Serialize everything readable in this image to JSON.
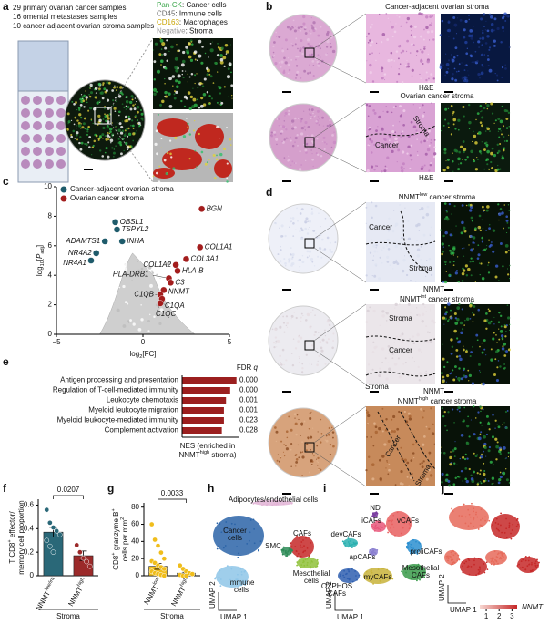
{
  "panel_labels": [
    "a",
    "b",
    "c",
    "d",
    "e",
    "f",
    "g",
    "h",
    "i",
    "j"
  ],
  "panel_a": {
    "samples": [
      "29 primary ovarian cancer samples",
      "16 omental metastases samples",
      "10 cancer-adjacent ovarian stroma samples"
    ],
    "legend": [
      {
        "marker": "Pan-CK",
        "label": ": Cancer cells",
        "color": "#3aa64a"
      },
      {
        "marker": "CD45",
        "label": ": Immune cells",
        "color": "#666666"
      },
      {
        "marker": "CD163",
        "label": ": Macrophages",
        "color": "#c9a400"
      },
      {
        "marker": "Negative",
        "label": ": Stroma",
        "color": "#9a9a9a"
      }
    ]
  },
  "panel_b": {
    "top": {
      "title": "Cancer-adjacent ovarian stroma",
      "stain": "H&E"
    },
    "bottom": {
      "title": "Ovarian cancer stroma",
      "regions": [
        "Cancer",
        "Stroma"
      ],
      "stain": "H&E"
    }
  },
  "panel_d": {
    "rows": [
      {
        "title": [
          {
            "t": "NNMT"
          },
          {
            "t": "low",
            "pos": "sup"
          },
          {
            "t": " cancer stroma"
          }
        ],
        "regions": [
          "Cancer",
          "Stroma"
        ],
        "stain": "NNMT"
      },
      {
        "title": [
          {
            "t": "NNMT"
          },
          {
            "t": "int",
            "pos": "sup"
          },
          {
            "t": " cancer stroma"
          }
        ],
        "regions": [
          "Stroma",
          "Cancer",
          "Stroma"
        ],
        "stain": "NNMT"
      },
      {
        "title": [
          {
            "t": "NNMT"
          },
          {
            "t": "high",
            "pos": "sup"
          },
          {
            "t": " cancer stroma"
          }
        ],
        "regions": [
          "Cancer",
          "Stroma"
        ]
      }
    ]
  },
  "chart_data": [
    {
      "type": "scatter",
      "xlabel": [
        {
          "t": "log"
        },
        {
          "t": "2",
          "pos": "sub"
        },
        {
          "t": "[FC]"
        }
      ],
      "ylabel": [
        {
          "t": "log"
        },
        {
          "t": "10",
          "pos": "sub"
        },
        {
          "t": "["
        },
        {
          "t": "P",
          "style": "italic"
        },
        {
          "t": "adj",
          "pos": "sub"
        },
        {
          "t": "]"
        }
      ],
      "xlim": [
        -5,
        5
      ],
      "xticks": [
        {
          "value": -5,
          "label": "−5"
        },
        0,
        5
      ],
      "ylim": [
        0,
        10
      ],
      "yticks": [
        0,
        2,
        4,
        6,
        8,
        10
      ],
      "series": [
        {
          "name": "Cancer-adjacent ovarian stroma",
          "color": "#1e5b6b",
          "labels": [
            "OBSL1",
            "TSPYL2",
            "ADAMTS1",
            "INHA",
            "NR4A2",
            "NR4A1"
          ],
          "x": [
            -1.6,
            -1.5,
            -2.2,
            -1.2,
            -2.7,
            -3.0
          ],
          "y": [
            7.6,
            7.1,
            6.3,
            6.3,
            5.5,
            5.0
          ]
        },
        {
          "name": "Ovarian cancer stroma",
          "color": "#a31d1d",
          "labels": [
            "BGN",
            "COL1A1",
            "COL3A1",
            "COL1A2",
            "HLA-DRB1",
            "HLA-B",
            "C3",
            "NNMT",
            "C1QB",
            "C1QA",
            "C1QC"
          ],
          "x": [
            3.4,
            3.3,
            2.5,
            1.9,
            1.5,
            2.0,
            1.6,
            1.2,
            1.0,
            1.1,
            1.0
          ],
          "y": [
            8.5,
            5.9,
            5.1,
            4.7,
            3.8,
            4.3,
            3.5,
            3.0,
            2.7,
            2.4,
            2.1
          ]
        }
      ]
    },
    {
      "type": "bar",
      "orientation": "horizontal",
      "header": [
        {
          "t": "FDR "
        },
        {
          "t": "q",
          "style": "italic"
        }
      ],
      "categories": [
        "Antigen processing and presentation",
        "Regulation of T-cell-mediated immunity",
        "Leukocyte chemotaxis",
        "Myeloid leukocyte migration",
        "Myeloid leukocyte-mediated immunity",
        "Complement activation"
      ],
      "values": [
        2.6,
        2.3,
        2.1,
        2.0,
        2.0,
        1.9
      ],
      "fdr": [
        "0.000",
        "0.000",
        "0.001",
        "0.001",
        "0.023",
        "0.028"
      ],
      "color": "#9b1f1f",
      "xlim": [
        0,
        2.7
      ],
      "xlabel": [
        [
          {
            "t": "NES (enriched in"
          }
        ],
        [
          {
            "t": "NNMT"
          },
          {
            "t": "high",
            "pos": "sup"
          },
          {
            "t": " stroma)"
          }
        ]
      ]
    },
    {
      "type": "bar",
      "ylabel": [
        [
          {
            "t": "T CD8"
          },
          {
            "t": "+",
            "pos": "sup"
          },
          {
            "t": " effector/"
          }
        ],
        [
          {
            "t": "memory cell proportion"
          }
        ]
      ],
      "categories": [
        [
          {
            "t": "NNMT"
          },
          {
            "t": "low/int",
            "pos": "sup"
          }
        ],
        [
          {
            "t": "NNMT"
          },
          {
            "t": "high",
            "pos": "sup"
          }
        ]
      ],
      "values": [
        0.37,
        0.17
      ],
      "errors": [
        0.04,
        0.04
      ],
      "points": [
        [
          0.56,
          0.45,
          0.41,
          0.38,
          0.35,
          0.3,
          0.25,
          0.2
        ],
        [
          0.26,
          0.2,
          0.15,
          0.12,
          0.08
        ]
      ],
      "colors": [
        "#2a6878",
        "#9b2a2a"
      ],
      "ylim": [
        0,
        0.65
      ],
      "yticks": [
        0,
        0.2,
        0.4,
        0.6
      ],
      "pvalue": 0.0207,
      "group": "Stroma"
    },
    {
      "type": "bar",
      "ylabel": [
        [
          {
            "t": "CD8"
          },
          {
            "t": "+",
            "pos": "sup"
          },
          {
            "t": " granzyme B"
          },
          {
            "t": "+",
            "pos": "sup"
          }
        ],
        [
          {
            "t": "cells per mm"
          },
          {
            "t": "2",
            "pos": "sup"
          }
        ]
      ],
      "categories": [
        [
          {
            "t": "NNMT"
          },
          {
            "t": "low",
            "pos": "sup"
          }
        ],
        [
          {
            "t": "NNMT"
          },
          {
            "t": "high",
            "pos": "sup"
          }
        ]
      ],
      "values": [
        11,
        3
      ],
      "errors": [
        3.5,
        1
      ],
      "points": [
        [
          60,
          42,
          35,
          27,
          20,
          17,
          15,
          12,
          10,
          8,
          5,
          3,
          2,
          1,
          0
        ],
        [
          12,
          8,
          5,
          3,
          2,
          1,
          0,
          0
        ]
      ],
      "colors": [
        "#f0bd1b",
        "#f0bd1b"
      ],
      "ylim": [
        0,
        85
      ],
      "yticks": [
        0,
        20,
        40,
        60,
        80
      ],
      "pvalue": 0.0033,
      "group": "Stroma"
    }
  ],
  "panel_h": {
    "clusters": [
      {
        "lines": [
          "Adipocytes/endothelial cells"
        ],
        "color": "#e2b4d6"
      },
      {
        "lines": [
          "Cancer",
          "cells"
        ],
        "color": "#2b64a8"
      },
      {
        "lines": [
          "CAFs"
        ],
        "color": "#c62828"
      },
      {
        "lines": [
          "SMC"
        ],
        "color": "#2e8b57"
      },
      {
        "lines": [
          "Mesothelial",
          "cells"
        ],
        "color": "#8fc13a"
      },
      {
        "lines": [
          "Immune",
          "cells"
        ],
        "color": "#8ec5e8"
      }
    ],
    "xlabel": "UMAP 1",
    "ylabel": "UMAP 2"
  },
  "panel_i": {
    "clusters": [
      {
        "lines": [
          "ND"
        ],
        "color": "#7b3fa0"
      },
      {
        "lines": [
          "iCAFs"
        ],
        "color": "#e8577a"
      },
      {
        "lines": [
          "vCAFs"
        ],
        "color": "#e85f5f"
      },
      {
        "lines": [
          "devCAFs"
        ],
        "color": "#2ab0b0"
      },
      {
        "lines": [
          "proliCAFs"
        ],
        "color": "#2b8fd0"
      },
      {
        "lines": [
          "apCAFs"
        ],
        "color": "#8a7fd0"
      },
      {
        "lines": [
          "OXPHOS",
          "CAFs"
        ],
        "color": "#2f5fb0"
      },
      {
        "lines": [
          "myCAFs"
        ],
        "color": "#c8b33a"
      },
      {
        "lines": [
          "Mesothelial",
          "CAFs"
        ],
        "color": "#3a9a4a"
      }
    ],
    "xlabel": "UMAP 1",
    "ylabel": "UMAP 2"
  },
  "panel_j": {
    "xlabel": "UMAP 1",
    "ylabel": "UMAP 2",
    "colorbar": {
      "label": "NNMT",
      "clim": [
        0.5,
        3.4
      ],
      "ticks": [
        1,
        2,
        3
      ],
      "colors": [
        "#f6d6d0",
        "#c62828"
      ]
    }
  }
}
